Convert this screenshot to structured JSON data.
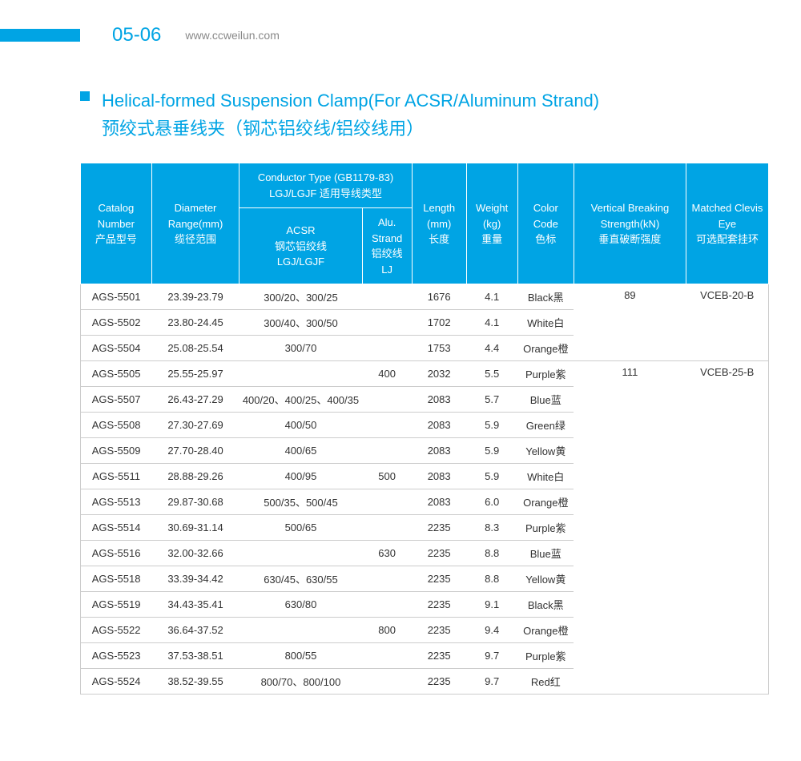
{
  "header": {
    "page_number": "05-06",
    "website": "www.ccweilun.com"
  },
  "title": {
    "en": "Helical-formed Suspension Clamp(For ACSR/Aluminum Strand)",
    "zh": "预绞式悬垂线夹（钢芯铝绞线/铝绞线用）"
  },
  "table": {
    "headers": {
      "catalog": "Catalog Number\n产品型号",
      "diameter": "Diameter Range(mm)\n缆径范围",
      "conductor_group": "Conductor  Type (GB1179-83)\nLGJ/LGJF 适用导线类型",
      "acsr": "ACSR\n钢芯铝绞线\nLGJ/LGJF",
      "alu": "Alu. Strand\n铝绞线\nLJ",
      "length": "Length (mm)\n长度",
      "weight": "Weight (kg)\n重量",
      "color": "Color Code\n色标",
      "vertical": "Vertical Breaking Strength(kN)\n垂直破断强度",
      "matched": "Matched Clevis Eye\n可选配套挂环"
    },
    "rows": [
      {
        "catalog": "AGS-5501",
        "diameter": "23.39-23.79",
        "acsr": "300/20、300/25",
        "alu": "",
        "length": "1676",
        "weight": "4.1",
        "color": "Black黑"
      },
      {
        "catalog": "AGS-5502",
        "diameter": "23.80-24.45",
        "acsr": "300/40、300/50",
        "alu": "",
        "length": "1702",
        "weight": "4.1",
        "color": "White白"
      },
      {
        "catalog": "AGS-5504",
        "diameter": "25.08-25.54",
        "acsr": "300/70",
        "alu": "",
        "length": "1753",
        "weight": "4.4",
        "color": "Orange橙"
      },
      {
        "catalog": "AGS-5505",
        "diameter": "25.55-25.97",
        "acsr": "",
        "alu": "400",
        "length": "2032",
        "weight": "5.5",
        "color": "Purple紫"
      },
      {
        "catalog": "AGS-5507",
        "diameter": "26.43-27.29",
        "acsr": "400/20、400/25、400/35",
        "alu": "",
        "length": "2083",
        "weight": "5.7",
        "color": "Blue蓝"
      },
      {
        "catalog": "AGS-5508",
        "diameter": "27.30-27.69",
        "acsr": "400/50",
        "alu": "",
        "length": "2083",
        "weight": "5.9",
        "color": "Green绿"
      },
      {
        "catalog": "AGS-5509",
        "diameter": "27.70-28.40",
        "acsr": "400/65",
        "alu": "",
        "length": "2083",
        "weight": "5.9",
        "color": "Yellow黄"
      },
      {
        "catalog": "AGS-5511",
        "diameter": "28.88-29.26",
        "acsr": "400/95",
        "alu": "500",
        "length": "2083",
        "weight": "5.9",
        "color": "White白"
      },
      {
        "catalog": "AGS-5513",
        "diameter": "29.87-30.68",
        "acsr": "500/35、500/45",
        "alu": "",
        "length": "2083",
        "weight": "6.0",
        "color": "Orange橙"
      },
      {
        "catalog": "AGS-5514",
        "diameter": "30.69-31.14",
        "acsr": "500/65",
        "alu": "",
        "length": "2235",
        "weight": "8.3",
        "color": "Purple紫"
      },
      {
        "catalog": "AGS-5516",
        "diameter": "32.00-32.66",
        "acsr": "",
        "alu": "630",
        "length": "2235",
        "weight": "8.8",
        "color": "Blue蓝"
      },
      {
        "catalog": "AGS-5518",
        "diameter": "33.39-34.42",
        "acsr": "630/45、630/55",
        "alu": "",
        "length": "2235",
        "weight": "8.8",
        "color": "Yellow黄"
      },
      {
        "catalog": "AGS-5519",
        "diameter": "34.43-35.41",
        "acsr": "630/80",
        "alu": "",
        "length": "2235",
        "weight": "9.1",
        "color": "Black黑"
      },
      {
        "catalog": "AGS-5522",
        "diameter": "36.64-37.52",
        "acsr": "",
        "alu": "800",
        "length": "2235",
        "weight": "9.4",
        "color": "Orange橙"
      },
      {
        "catalog": "AGS-5523",
        "diameter": "37.53-38.51",
        "acsr": "800/55",
        "alu": "",
        "length": "2235",
        "weight": "9.7",
        "color": "Purple紫"
      },
      {
        "catalog": "AGS-5524",
        "diameter": "38.52-39.55",
        "acsr": "800/70、800/100",
        "alu": "",
        "length": "2235",
        "weight": "9.7",
        "color": "Red红"
      }
    ],
    "groups": [
      {
        "start": 0,
        "span": 3,
        "vertical": "89",
        "matched": "VCEB-20-B"
      },
      {
        "start": 3,
        "span": 13,
        "vertical": "111",
        "matched": "VCEB-25-B"
      }
    ]
  },
  "colors": {
    "primary": "#00a4e4",
    "text_muted": "#888888",
    "row_border": "#cccccc"
  }
}
